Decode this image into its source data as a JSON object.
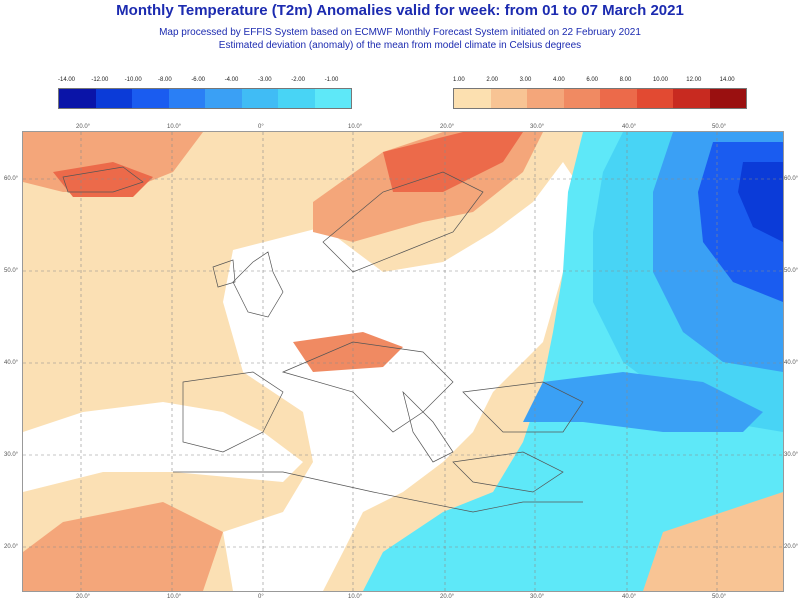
{
  "title": "Monthly Temperature (T2m) Anomalies valid for week: from 01 to 07 March 2021",
  "subtitle_1": "Map processed by EFFIS System based on ECMWF Monthly Forecast System initiated on 22 February 2021",
  "subtitle_2": "Estimated deviation (anomaly) of the mean from model climate in Celsius degrees",
  "legend": {
    "cold_labels": [
      "-14.00",
      "-12.00",
      "-10.00",
      "-8.00",
      "-6.00",
      "-4.00",
      "-3.00",
      "-2.00",
      "-1.00"
    ],
    "warm_labels": [
      "1.00",
      "2.00",
      "3.00",
      "4.00",
      "6.00",
      "8.00",
      "10.00",
      "12.00",
      "14.00"
    ],
    "cold_colors": [
      "#0a14a8",
      "#0b3bd8",
      "#1a5cf0",
      "#2a7ff5",
      "#3aa0f5",
      "#40bcf5",
      "#48d4f5",
      "#5ee8f8"
    ],
    "warm_colors": [
      "#fce0b0",
      "#f8c494",
      "#f4a67a",
      "#f08a62",
      "#ec6a4a",
      "#e24a32",
      "#c82a20",
      "#9a1010"
    ]
  },
  "map": {
    "top_ticks": [
      "20.0°",
      "10.0°",
      "0°",
      "10.0°",
      "20.0°",
      "30.0°",
      "40.0°",
      "50.0°"
    ],
    "bottom_ticks": [
      "20.0°",
      "10.0°",
      "0°",
      "10.0°",
      "20.0°",
      "30.0°",
      "40.0°",
      "50.0°"
    ],
    "left_ticks": [
      "60.0°",
      "50.0°",
      "40.0°",
      "30.0°",
      "20.0°"
    ],
    "right_ticks": [
      "60.0°",
      "50.0°",
      "40.0°",
      "30.0°",
      "20.0°"
    ]
  }
}
